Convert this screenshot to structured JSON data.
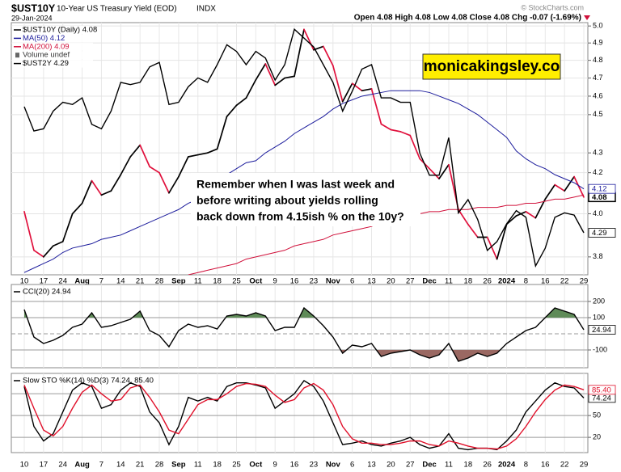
{
  "header": {
    "symbol": "$UST10Y",
    "name": "10-Year US Treasury Yield (EOD)",
    "exchange": "INDX",
    "date": "29-Jan-2024",
    "quote": "Open 4.08  High 4.08  Low 4.08  Close 4.08  Chg -0.07 (-1.69%)",
    "credit": "© StockCharts.com"
  },
  "watermark": "monicakingsley.co",
  "annotation": [
    "Remember when I was last week and",
    "before writing about yields rolling",
    "back down from 4.15ish % on the 10y?"
  ],
  "chart_data": [
    {
      "type": "line",
      "log_scale": true,
      "grid": true,
      "grid_color": "#e4e4e4",
      "legend": "top-left",
      "categories": [
        "10",
        null,
        "17",
        null,
        "24",
        null,
        "Aug",
        null,
        "7",
        null,
        "14",
        null,
        "21",
        null,
        "28",
        null,
        "Sep",
        null,
        "11",
        null,
        "18",
        null,
        "25",
        null,
        "Oct",
        null,
        "9",
        null,
        "16",
        null,
        "23",
        null,
        "Nov",
        null,
        "6",
        null,
        "13",
        null,
        "20",
        null,
        "27",
        null,
        "Dec",
        null,
        "11",
        null,
        "18",
        null,
        "26",
        null,
        "2024",
        null,
        "8",
        null,
        "16",
        null,
        "22",
        null,
        "29"
      ],
      "ylim": [
        3.72,
        5.02
      ],
      "yticks": [
        {
          "value": 5,
          "label": "5.0"
        },
        4.9,
        4.8,
        4.7,
        4.6,
        4.5,
        4.3,
        4.2,
        {
          "value": 4,
          "label": "4.0"
        },
        3.8
      ],
      "y2lim": [
        4.1,
        5.24
      ],
      "legend_extra": [
        "Volume undef"
      ],
      "series": [
        {
          "name": "$UST10Y (Daily) 4.08",
          "color": "#000000",
          "down_color": "#e0103c",
          "style": "updown",
          "box": "bold",
          "values": [
            4.01,
            3.83,
            3.8,
            3.85,
            3.87,
            4.0,
            4.05,
            4.16,
            4.09,
            4.11,
            4.19,
            4.28,
            4.34,
            4.23,
            4.2,
            4.1,
            4.18,
            4.28,
            4.29,
            4.3,
            4.32,
            4.49,
            4.55,
            4.59,
            4.69,
            4.78,
            4.66,
            4.7,
            4.71,
            4.98,
            4.86,
            4.88,
            4.77,
            4.57,
            4.67,
            4.63,
            4.64,
            4.45,
            4.42,
            4.41,
            4.39,
            4.27,
            4.22,
            4.17,
            4.24,
            4.02,
            3.95,
            3.89,
            3.89,
            3.79,
            3.95,
            3.99,
            4.01,
            3.98,
            4.07,
            4.14,
            4.11,
            4.18,
            4.08
          ]
        },
        {
          "name": "MA(50) 4.12",
          "color": "#1c1c9c",
          "box": "plain",
          "values": [
            3.73,
            3.75,
            3.77,
            3.79,
            3.82,
            3.84,
            3.85,
            3.86,
            3.88,
            3.89,
            3.9,
            3.92,
            3.94,
            3.96,
            3.98,
            4.0,
            4.02,
            4.05,
            4.07,
            4.1,
            4.15,
            4.19,
            4.22,
            4.25,
            4.26,
            4.3,
            4.33,
            4.36,
            4.4,
            4.43,
            4.46,
            4.49,
            4.53,
            4.56,
            4.58,
            4.6,
            4.61,
            4.62,
            4.63,
            4.63,
            4.63,
            4.63,
            4.62,
            4.6,
            4.58,
            4.56,
            4.53,
            4.5,
            4.46,
            4.42,
            4.38,
            4.31,
            4.27,
            4.24,
            4.22,
            4.19,
            4.17,
            4.15,
            4.12
          ]
        },
        {
          "name": "MA(200) 4.09",
          "color": "#d0103a",
          "values": [
            null,
            null,
            null,
            null,
            null,
            null,
            null,
            null,
            null,
            null,
            null,
            null,
            null,
            null,
            null,
            null,
            null,
            3.72,
            3.73,
            3.74,
            3.75,
            3.76,
            3.77,
            3.79,
            3.8,
            3.81,
            3.82,
            3.83,
            3.85,
            3.86,
            3.87,
            3.88,
            3.9,
            3.91,
            3.92,
            3.93,
            3.94,
            3.96,
            3.97,
            3.98,
            3.99,
            4.0,
            4.01,
            4.01,
            4.02,
            4.02,
            4.02,
            4.03,
            4.03,
            4.03,
            4.04,
            4.04,
            4.05,
            4.05,
            4.06,
            4.07,
            4.07,
            4.08,
            4.09
          ]
        },
        {
          "name": "$UST2Y 4.29",
          "color": "#000000",
          "axis": "y2",
          "box": "plain",
          "values": [
            4.86,
            4.75,
            4.76,
            4.84,
            4.88,
            4.87,
            4.9,
            4.78,
            4.76,
            4.84,
            4.97,
            4.96,
            4.97,
            5.04,
            5.06,
            4.87,
            4.88,
            4.95,
            4.99,
            4.97,
            5.05,
            5.14,
            5.11,
            5.05,
            5.11,
            5.08,
            4.98,
            5.05,
            5.21,
            5.17,
            5.13,
            5.05,
            4.97,
            4.84,
            4.93,
            5.03,
            5.05,
            4.9,
            4.9,
            4.88,
            4.88,
            4.65,
            4.55,
            4.55,
            4.72,
            4.38,
            4.44,
            4.35,
            4.21,
            4.25,
            4.33,
            4.39,
            4.36,
            4.14,
            4.22,
            4.36,
            4.38,
            4.37,
            4.29
          ]
        }
      ]
    },
    {
      "type": "line",
      "title": "CCI(20) 24.94",
      "grid": true,
      "grid_color": "#9a9a9a",
      "ylim": [
        -210,
        305
      ],
      "yticks": [
        200,
        100,
        -100
      ],
      "bands": [
        {
          "level": 100,
          "side": "above",
          "color": "#5f8b58"
        },
        {
          "level": -100,
          "side": "below",
          "color": "#9a6862"
        }
      ],
      "series": [
        {
          "color": "#000000",
          "box": "plain",
          "values": [
            150,
            -20,
            -60,
            -40,
            -10,
            40,
            60,
            130,
            40,
            50,
            70,
            90,
            140,
            20,
            -10,
            -80,
            20,
            60,
            40,
            50,
            30,
            110,
            120,
            110,
            130,
            110,
            20,
            40,
            40,
            160,
            110,
            50,
            -20,
            -120,
            -70,
            -80,
            -60,
            -140,
            -120,
            -110,
            -100,
            -130,
            -150,
            -130,
            -60,
            -170,
            -150,
            -120,
            -140,
            -120,
            -60,
            -20,
            20,
            40,
            100,
            160,
            140,
            120,
            24.94
          ]
        }
      ]
    },
    {
      "type": "line",
      "title": "Slow STO %K(14) %D(3) 74.24, 85.40",
      "grid": true,
      "grid_color": "#9a9a9a",
      "categories": [
        "10",
        null,
        "17",
        null,
        "24",
        null,
        "Aug",
        null,
        "7",
        null,
        "14",
        null,
        "21",
        null,
        "28",
        null,
        "Sep",
        null,
        "11",
        null,
        "18",
        null,
        "25",
        null,
        "Oct",
        null,
        "9",
        null,
        "16",
        null,
        "23",
        null,
        "Nov",
        null,
        "6",
        null,
        "13",
        null,
        "20",
        null,
        "27",
        null,
        "Dec",
        null,
        "11",
        null,
        "18",
        null,
        "26",
        null,
        "2024",
        null,
        "8",
        null,
        "16",
        null,
        "22",
        null,
        "29"
      ],
      "ylim": [
        -1,
        108
      ],
      "yticks": [
        80,
        50,
        20
      ],
      "series": [
        {
          "color": "#000000",
          "box": "plain",
          "values": [
            90,
            35,
            15,
            25,
            55,
            85,
            95,
            90,
            60,
            65,
            85,
            95,
            90,
            55,
            40,
            10,
            35,
            75,
            70,
            75,
            70,
            90,
            95,
            95,
            92,
            88,
            60,
            70,
            80,
            98,
            90,
            70,
            40,
            10,
            12,
            15,
            10,
            8,
            12,
            15,
            20,
            10,
            5,
            8,
            25,
            5,
            3,
            5,
            5,
            3,
            15,
            30,
            55,
            70,
            85,
            95,
            90,
            88,
            74.24
          ]
        },
        {
          "color": "#e0102a",
          "box": "plain",
          "values": [
            92,
            60,
            30,
            22,
            35,
            60,
            82,
            92,
            80,
            70,
            72,
            88,
            92,
            75,
            55,
            30,
            25,
            45,
            65,
            72,
            72,
            80,
            90,
            94,
            93,
            90,
            78,
            68,
            72,
            88,
            94,
            85,
            65,
            35,
            18,
            12,
            12,
            10,
            10,
            12,
            15,
            15,
            10,
            8,
            15,
            12,
            8,
            5,
            5,
            4,
            8,
            18,
            35,
            55,
            72,
            85,
            92,
            90,
            85.4
          ],
          "value_labels": [
            null,
            null,
            null,
            null,
            null,
            null,
            null,
            null,
            null,
            null,
            null,
            null,
            null,
            null,
            null,
            null,
            null,
            null,
            null,
            null,
            null,
            null,
            null,
            null,
            null,
            null,
            null,
            null,
            null,
            null,
            null,
            null,
            null,
            null,
            null,
            null,
            null,
            null,
            null,
            null,
            null,
            null,
            null,
            null,
            null,
            null,
            null,
            null,
            null,
            null,
            null,
            null,
            null,
            null,
            null,
            null,
            null,
            null,
            "85.40"
          ]
        }
      ]
    }
  ]
}
